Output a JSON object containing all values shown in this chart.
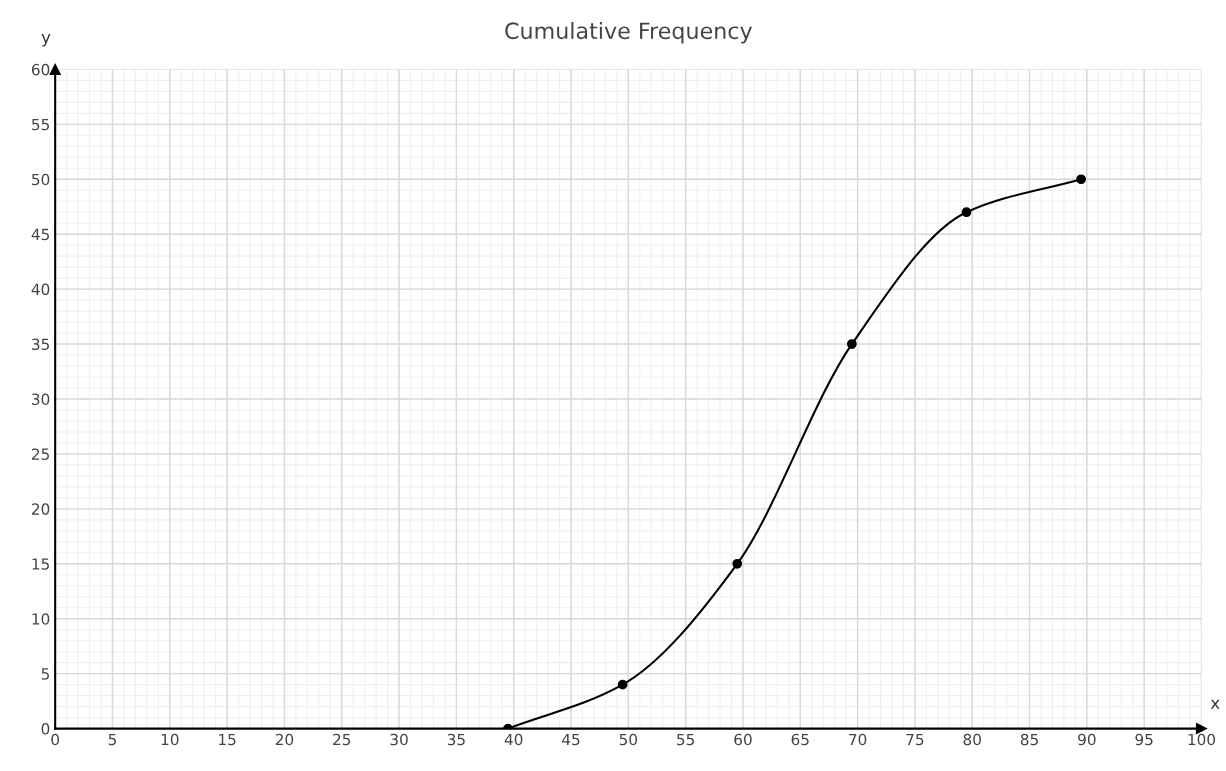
{
  "chart_data": {
    "type": "line",
    "title": "Cumulative Frequency",
    "xlabel": "x",
    "ylabel": "y",
    "series": [
      {
        "color": "#000000",
        "x": [
          39.5,
          49.5,
          59.5,
          69.5,
          79.5,
          89.5
        ],
        "values": [
          0,
          4,
          15,
          35,
          47,
          50
        ]
      }
    ],
    "xlim": [
      0,
      100
    ],
    "xticks": [
      0,
      5,
      10,
      15,
      20,
      25,
      30,
      35,
      40,
      45,
      50,
      55,
      60,
      65,
      70,
      75,
      80,
      85,
      90,
      95,
      100
    ],
    "ylim": [
      0,
      60
    ],
    "yticks": [
      0,
      5,
      10,
      15,
      20,
      25,
      30,
      35,
      40,
      45,
      50,
      55,
      60
    ],
    "grid": true,
    "legend": false,
    "marker": "circle",
    "line_style": "solid"
  }
}
